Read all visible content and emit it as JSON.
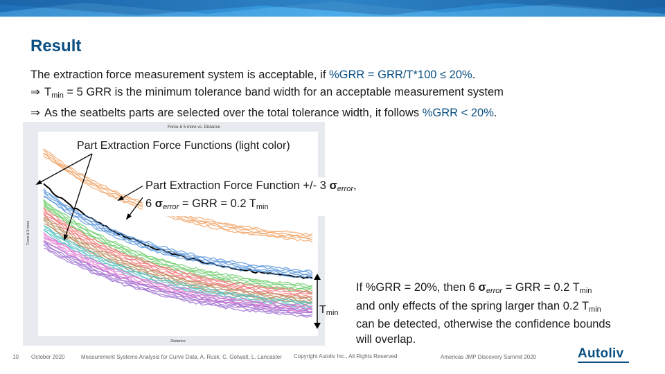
{
  "slide": {
    "title": "Result",
    "lines": [
      {
        "prefix": "",
        "text": "The extraction force measurement system is acceptable, if ",
        "accent": "%GRR = GRR/T*100 ≤ 20%",
        "suffix": "."
      },
      {
        "prefix": "⇒",
        "t": "T",
        "sub": "min",
        "text": " = 5 GRR is the minimum tolerance band width for an acceptable measurement system"
      },
      {
        "prefix": "⇒",
        "text": "As the seatbelts parts are selected over the total tolerance width, it follows ",
        "accent": "%GRR < 20%",
        "suffix": "."
      }
    ]
  },
  "chart": {
    "title": "Force & 5 more vs. Distance",
    "xlabel": "Distance",
    "ylabel": "Force & 5 more"
  },
  "chart_data": {
    "type": "line",
    "title": "Force & 5 more vs. Distance",
    "xlabel": "Distance",
    "ylabel": "Force & 5 more",
    "series": [
      {
        "color": "#f0a060",
        "start": 0.1,
        "end": 0.52
      },
      {
        "color": "#000000",
        "start": 0.26,
        "end": 0.72
      },
      {
        "color": "#4f8fd8",
        "start": 0.3,
        "end": 0.7
      },
      {
        "color": "#66cc66",
        "start": 0.35,
        "end": 0.77
      },
      {
        "color": "#ef6f6f",
        "start": 0.39,
        "end": 0.8
      },
      {
        "color": "#b88a5a",
        "start": 0.43,
        "end": 0.83
      },
      {
        "color": "#50c0c0",
        "start": 0.47,
        "end": 0.85
      },
      {
        "color": "#e070d0",
        "start": 0.51,
        "end": 0.87
      },
      {
        "color": "#9a6ad0",
        "start": 0.55,
        "end": 0.89
      }
    ]
  },
  "annotations": {
    "part_functions": "Part Extraction Force Functions (light color)",
    "pm_line1_a": "Part Extraction Force Function +/- 3 ",
    "sigma": "σ",
    "error_sub": "error",
    "pm_line1_b": ",",
    "pm_line2_a": "6 ",
    "pm_line2_b": " = GRR = 0.2 T",
    "min_sub": "min",
    "tmin_t": "T",
    "right_line1_a": "If %GRR = 20%, then 6 ",
    "right_line1_b": " = GRR = 0.2 T",
    "right_line2_a": "and only effects of the spring larger than 0.2 T",
    "right_line3": "can be detected, otherwise the confidence bounds",
    "right_line4": "will overlap."
  },
  "footer": {
    "page": "10",
    "date": "October 2020",
    "paper": "Measurement Systems Analysis for Curve Data, A. Rusk, C. Gotwalt, L. Lancaster",
    "copyright": "Copyright Autoliv Inc., All Rights Reserved",
    "event": "Americas JMP Discovery Summit 2020",
    "logo": "Autoliv"
  },
  "colors": {
    "brand": "#0a4f82",
    "topbar": "#2b8fd9"
  }
}
